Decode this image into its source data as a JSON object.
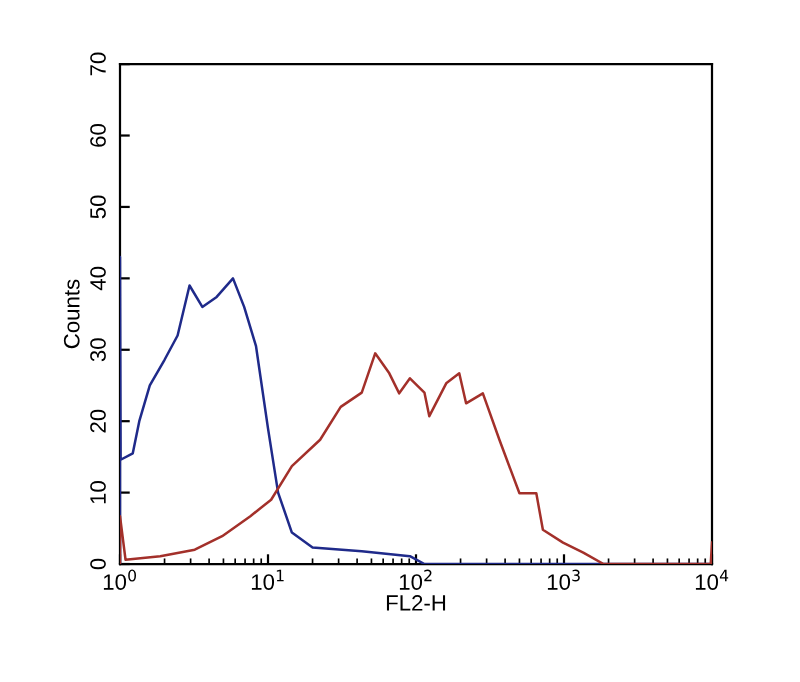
{
  "chart_data": {
    "type": "line",
    "xlabel": "FL2-H",
    "ylabel": "Counts",
    "log": "x",
    "xlim": [
      1,
      10000
    ],
    "ylim": [
      0,
      70
    ],
    "xticks": [
      {
        "value": 1,
        "label": "10$^{0}$"
      },
      {
        "value": 10,
        "label": "10$^{1}$"
      },
      {
        "value": 100,
        "label": "10$^{2}$"
      },
      {
        "value": 1000,
        "label": "10$^{3}$"
      },
      {
        "value": 10000,
        "label": "10$^{4}$"
      }
    ],
    "yticks": [
      0,
      10,
      20,
      30,
      40,
      50,
      60,
      70
    ],
    "grid": false,
    "legend": false,
    "marker": "none",
    "line_style": "solid",
    "series": [
      {
        "color": "#1f2a8a",
        "x": [
          1,
          1,
          1.01,
          1.22,
          1.35,
          1.59,
          2.0,
          2.45,
          2.95,
          3.6,
          4.5,
          5.8,
          6.9,
          8.3,
          10,
          11.7,
          14.5,
          20,
          43,
          91,
          114,
          10000
        ],
        "values": [
          0,
          43,
          14.6,
          15.5,
          20,
          25,
          28.6,
          32,
          39,
          36,
          37.4,
          40,
          36,
          30.5,
          19,
          10,
          4.4,
          2.3,
          1.8,
          1.1,
          0,
          0
        ]
      },
      {
        "color": "#a3302a",
        "x": [
          1,
          1,
          1.09,
          1.87,
          3.2,
          4.9,
          7.6,
          10.5,
          14.5,
          22.5,
          31,
          43,
          53,
          66,
          77,
          91,
          114,
          123,
          160,
          196,
          218,
          283,
          366,
          500,
          650,
          720,
          985,
          1350,
          1850,
          9800,
          10000
        ],
        "values": [
          0,
          6.7,
          0.6,
          1.1,
          2,
          3.9,
          6.7,
          9,
          13.7,
          17.4,
          22,
          24,
          29.5,
          26.7,
          23.9,
          26,
          24,
          20.7,
          25.3,
          26.7,
          22.5,
          23.9,
          17.4,
          9.9,
          9.9,
          4.8,
          3,
          1.6,
          0,
          0,
          3
        ]
      }
    ]
  }
}
